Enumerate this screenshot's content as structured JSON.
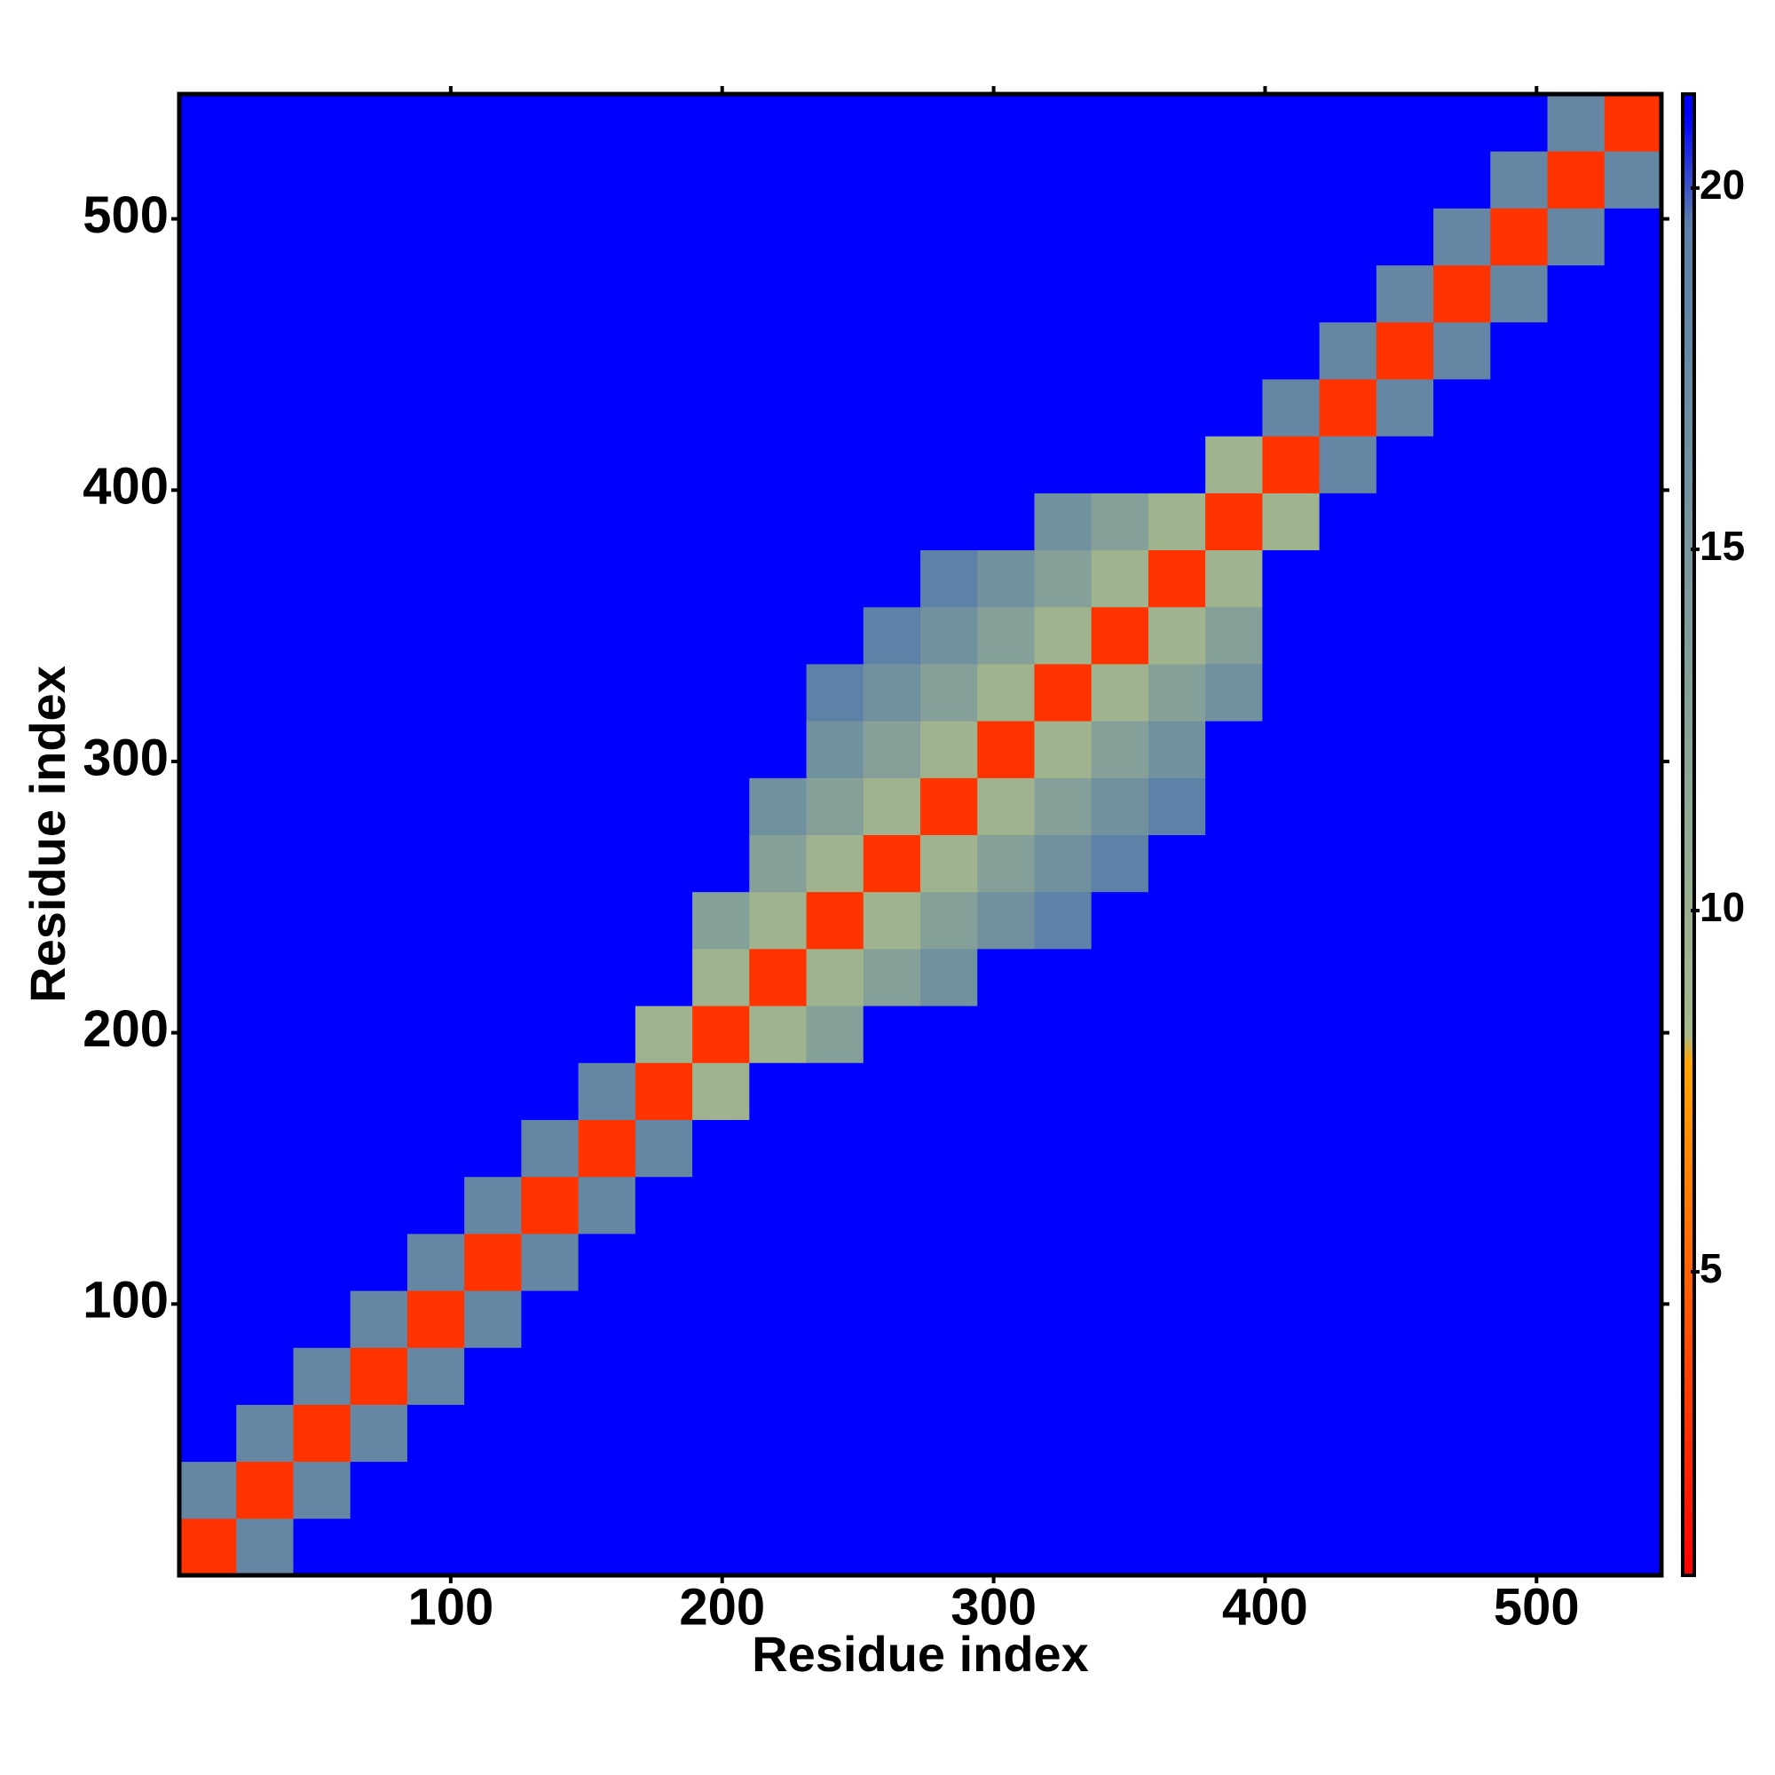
{
  "chart_data": {
    "type": "heatmap",
    "xlabel": "Residue index",
    "ylabel": "Residue index",
    "xlim": [
      0,
      546
    ],
    "ylim": [
      0,
      546
    ],
    "xticks": [
      100,
      200,
      300,
      400,
      500
    ],
    "yticks": [
      100,
      200,
      300,
      400,
      500
    ],
    "xbins": [
      0,
      21,
      42,
      63,
      84,
      105,
      126,
      147,
      168,
      189,
      210,
      231,
      252,
      273,
      294,
      315,
      336,
      357,
      378,
      399,
      420,
      441,
      462,
      483,
      504,
      525,
      546
    ],
    "ybins": [
      0,
      21,
      42,
      63,
      84,
      105,
      126,
      147,
      168,
      189,
      210,
      231,
      252,
      273,
      294,
      315,
      336,
      357,
      378,
      399,
      420,
      441,
      462,
      483,
      504,
      525,
      546
    ],
    "zlim": [
      0.8,
      21.3
    ],
    "zticks": [
      5,
      10,
      15,
      20
    ],
    "colorscale": [
      [
        0.8,
        "#ff0000"
      ],
      [
        7.9,
        "#ffa500"
      ],
      [
        8.3,
        "#a4b88c"
      ],
      [
        19.5,
        "#5b7fa8"
      ],
      [
        21,
        "#0000ff"
      ]
    ],
    "z": [
      [
        3,
        18,
        21,
        21,
        21,
        21,
        21,
        21,
        21,
        21,
        21,
        21,
        21,
        21,
        21,
        21,
        21,
        21,
        21,
        21,
        21,
        21,
        21,
        21,
        21,
        21
      ],
      [
        18,
        3,
        18,
        21,
        21,
        21,
        21,
        21,
        21,
        21,
        21,
        21,
        21,
        21,
        21,
        21,
        21,
        21,
        21,
        21,
        21,
        21,
        21,
        21,
        21,
        21
      ],
      [
        21,
        18,
        3,
        18,
        21,
        21,
        21,
        21,
        21,
        21,
        21,
        21,
        21,
        21,
        21,
        21,
        21,
        21,
        21,
        21,
        21,
        21,
        21,
        21,
        21,
        21
      ],
      [
        21,
        21,
        18,
        3,
        18,
        21,
        21,
        21,
        21,
        21,
        21,
        21,
        21,
        21,
        21,
        21,
        21,
        21,
        21,
        21,
        21,
        21,
        21,
        21,
        21,
        21
      ],
      [
        21,
        21,
        21,
        18,
        3,
        18,
        21,
        21,
        21,
        21,
        21,
        21,
        21,
        21,
        21,
        21,
        21,
        21,
        21,
        21,
        21,
        21,
        21,
        21,
        21,
        21
      ],
      [
        21,
        21,
        21,
        21,
        18,
        3,
        18,
        21,
        21,
        21,
        21,
        21,
        21,
        21,
        21,
        21,
        21,
        21,
        21,
        21,
        21,
        21,
        21,
        21,
        21,
        21
      ],
      [
        21,
        21,
        21,
        21,
        21,
        18,
        3,
        18,
        21,
        21,
        21,
        21,
        21,
        21,
        21,
        21,
        21,
        21,
        21,
        21,
        21,
        21,
        21,
        21,
        21,
        21
      ],
      [
        21,
        21,
        21,
        21,
        21,
        21,
        18,
        3,
        18,
        21,
        21,
        21,
        21,
        21,
        21,
        21,
        21,
        21,
        21,
        21,
        21,
        21,
        21,
        21,
        21,
        21
      ],
      [
        21,
        21,
        21,
        21,
        21,
        21,
        21,
        18,
        3,
        9,
        21,
        21,
        21,
        21,
        21,
        21,
        21,
        21,
        21,
        21,
        21,
        21,
        21,
        21,
        21,
        21
      ],
      [
        21,
        21,
        21,
        21,
        21,
        21,
        21,
        21,
        9,
        3,
        9,
        13,
        21,
        21,
        21,
        21,
        21,
        21,
        21,
        21,
        21,
        21,
        21,
        21,
        21,
        21
      ],
      [
        21,
        21,
        21,
        21,
        21,
        21,
        21,
        21,
        21,
        9,
        3,
        9,
        13,
        16,
        21,
        21,
        21,
        21,
        21,
        21,
        21,
        21,
        21,
        21,
        21,
        21
      ],
      [
        21,
        21,
        21,
        21,
        21,
        21,
        21,
        21,
        21,
        13,
        9,
        3,
        9,
        13,
        16,
        19,
        21,
        21,
        21,
        21,
        21,
        21,
        21,
        21,
        21,
        21
      ],
      [
        21,
        21,
        21,
        21,
        21,
        21,
        21,
        21,
        21,
        21,
        13,
        9,
        3,
        9,
        13,
        16,
        19,
        21,
        21,
        21,
        21,
        21,
        21,
        21,
        21,
        21
      ],
      [
        21,
        21,
        21,
        21,
        21,
        21,
        21,
        21,
        21,
        21,
        16,
        13,
        9,
        3,
        9,
        13,
        16,
        19,
        21,
        21,
        21,
        21,
        21,
        21,
        21,
        21
      ],
      [
        21,
        21,
        21,
        21,
        21,
        21,
        21,
        21,
        21,
        21,
        21,
        16,
        13,
        9,
        3,
        9,
        13,
        16,
        21,
        21,
        21,
        21,
        21,
        21,
        21,
        21
      ],
      [
        21,
        21,
        21,
        21,
        21,
        21,
        21,
        21,
        21,
        21,
        21,
        19,
        16,
        13,
        9,
        3,
        9,
        13,
        16,
        21,
        21,
        21,
        21,
        21,
        21,
        21
      ],
      [
        21,
        21,
        21,
        21,
        21,
        21,
        21,
        21,
        21,
        21,
        21,
        21,
        19,
        16,
        13,
        9,
        3,
        9,
        13,
        21,
        21,
        21,
        21,
        21,
        21,
        21
      ],
      [
        21,
        21,
        21,
        21,
        21,
        21,
        21,
        21,
        21,
        21,
        21,
        21,
        21,
        19,
        16,
        13,
        9,
        3,
        9,
        21,
        21,
        21,
        21,
        21,
        21,
        21
      ],
      [
        21,
        21,
        21,
        21,
        21,
        21,
        21,
        21,
        21,
        21,
        21,
        21,
        21,
        21,
        21,
        16,
        13,
        9,
        3,
        9,
        21,
        21,
        21,
        21,
        21,
        21
      ],
      [
        21,
        21,
        21,
        21,
        21,
        21,
        21,
        21,
        21,
        21,
        21,
        21,
        21,
        21,
        21,
        21,
        21,
        21,
        9,
        3,
        18,
        21,
        21,
        21,
        21,
        21
      ],
      [
        21,
        21,
        21,
        21,
        21,
        21,
        21,
        21,
        21,
        21,
        21,
        21,
        21,
        21,
        21,
        21,
        21,
        21,
        21,
        18,
        3,
        18,
        21,
        21,
        21,
        21
      ],
      [
        21,
        21,
        21,
        21,
        21,
        21,
        21,
        21,
        21,
        21,
        21,
        21,
        21,
        21,
        21,
        21,
        21,
        21,
        21,
        21,
        18,
        3,
        18,
        21,
        21,
        21
      ],
      [
        21,
        21,
        21,
        21,
        21,
        21,
        21,
        21,
        21,
        21,
        21,
        21,
        21,
        21,
        21,
        21,
        21,
        21,
        21,
        21,
        21,
        18,
        3,
        18,
        21,
        21
      ],
      [
        21,
        21,
        21,
        21,
        21,
        21,
        21,
        21,
        21,
        21,
        21,
        21,
        21,
        21,
        21,
        21,
        21,
        21,
        21,
        21,
        21,
        21,
        18,
        3,
        18,
        21
      ],
      [
        21,
        21,
        21,
        21,
        21,
        21,
        21,
        21,
        21,
        21,
        21,
        21,
        21,
        21,
        21,
        21,
        21,
        21,
        21,
        21,
        21,
        21,
        21,
        18,
        3,
        18
      ],
      [
        21,
        21,
        21,
        21,
        21,
        21,
        21,
        21,
        21,
        21,
        21,
        21,
        21,
        21,
        21,
        21,
        21,
        21,
        21,
        21,
        21,
        21,
        21,
        21,
        18,
        3
      ]
    ]
  }
}
